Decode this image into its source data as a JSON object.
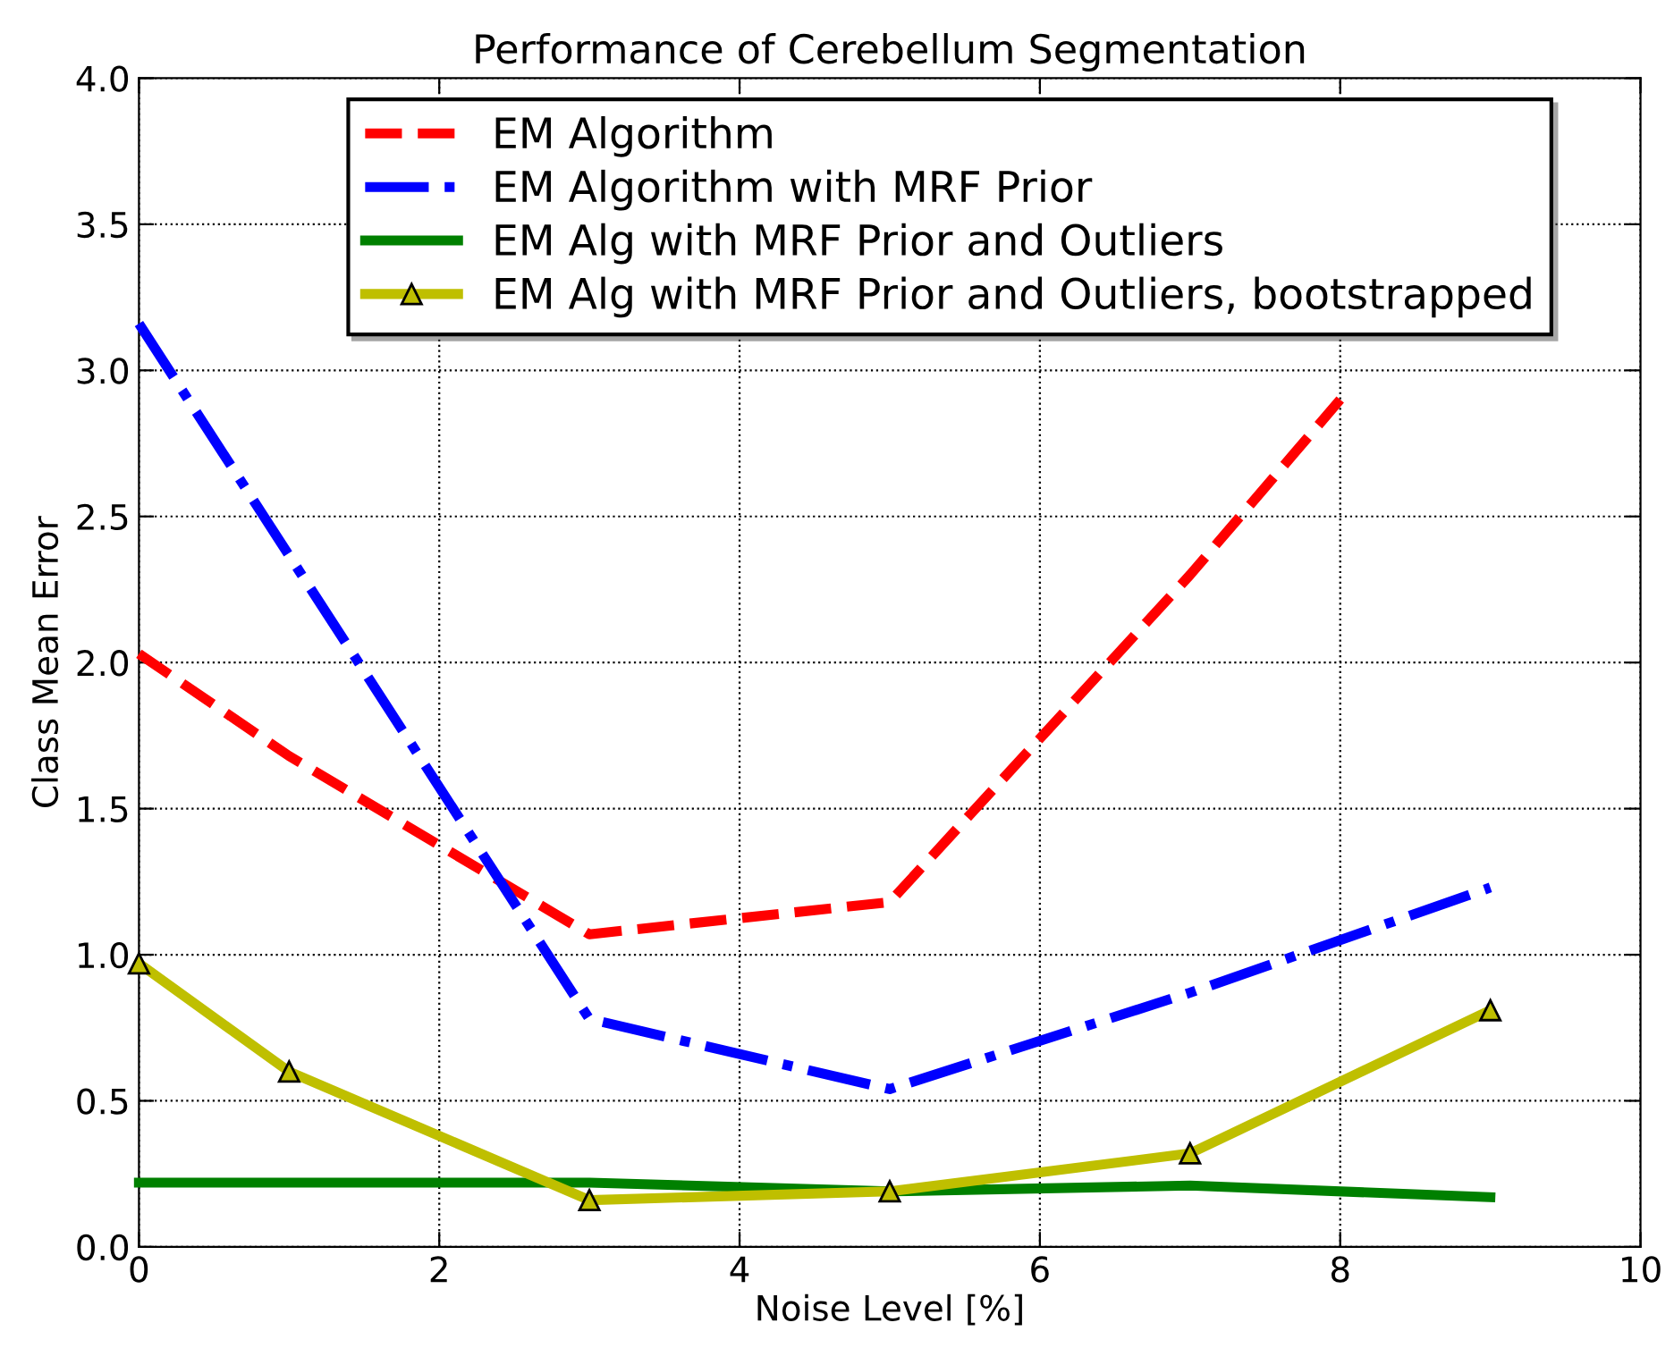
{
  "chart_data": {
    "type": "line",
    "title": "Performance of Cerebellum Segmentation",
    "xlabel": "Noise Level [%]",
    "ylabel": "Class Mean Error",
    "xlim": [
      0,
      10
    ],
    "xticks": [
      0,
      2,
      4,
      6,
      8,
      10
    ],
    "ylim": [
      0.0,
      4.0
    ],
    "yticks": [
      {
        "value": 0,
        "label": "0.0"
      },
      {
        "value": 0.5,
        "label": "0.5"
      },
      {
        "value": 1,
        "label": "1.0"
      },
      {
        "value": 1.5,
        "label": "1.5"
      },
      {
        "value": 2,
        "label": "2.0"
      },
      {
        "value": 2.5,
        "label": "2.5"
      },
      {
        "value": 3,
        "label": "3.0"
      },
      {
        "value": 3.5,
        "label": "3.5"
      },
      {
        "value": 4,
        "label": "4.0"
      }
    ],
    "grid": true,
    "legend": "top",
    "series": [
      {
        "name": "EM Algorithm",
        "color": "#ff0000",
        "line_style": "dashed",
        "marker": "none",
        "x": [
          0,
          1,
          3,
          5,
          7,
          8
        ],
        "values": [
          2.03,
          1.68,
          1.07,
          1.18,
          2.3,
          2.9
        ]
      },
      {
        "name": "EM Algorithm with MRF Prior",
        "color": "#0000ff",
        "line_style": "dashdot",
        "marker": "none",
        "x": [
          0,
          3,
          5,
          7,
          9
        ],
        "values": [
          3.16,
          0.78,
          0.54,
          0.87,
          1.23
        ]
      },
      {
        "name": "EM Alg with MRF Prior and Outliers",
        "color": "#008000",
        "line_style": "solid",
        "marker": "none",
        "x": [
          0,
          3,
          5,
          7,
          9
        ],
        "values": [
          0.22,
          0.22,
          0.19,
          0.21,
          0.17
        ]
      },
      {
        "name": "EM Alg with MRF Prior and Outliers, bootstrapped",
        "color": "#bfbf00",
        "line_style": "solid",
        "marker": "triangle",
        "x": [
          0,
          1,
          3,
          5,
          7,
          9
        ],
        "values": [
          0.97,
          0.6,
          0.16,
          0.19,
          0.32,
          0.81
        ]
      }
    ]
  }
}
